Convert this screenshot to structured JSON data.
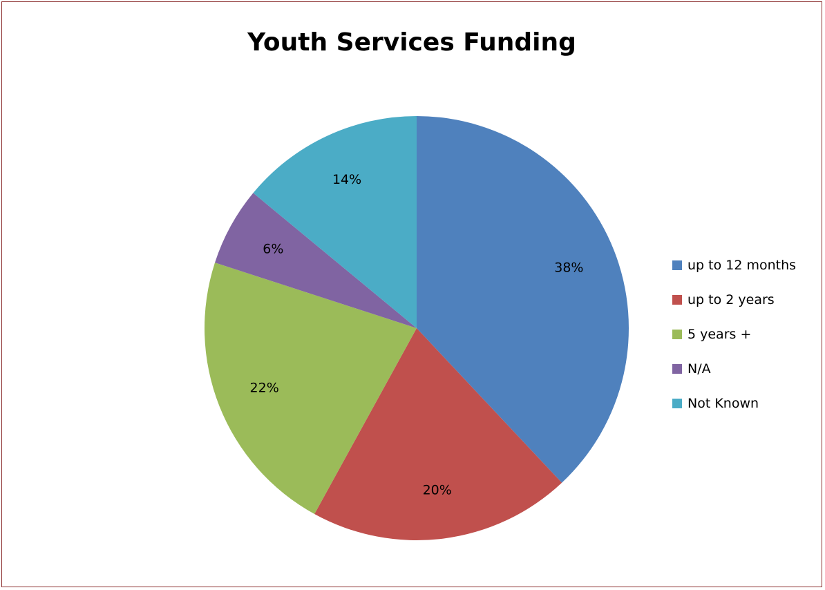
{
  "chart_data": {
    "type": "pie",
    "title": "Youth Services Funding",
    "categories": [
      "up to 12 months",
      "up to 2 years",
      "5 years +",
      "N/A",
      "Not Known"
    ],
    "values": [
      38,
      20,
      22,
      6,
      14
    ],
    "data_labels": [
      "38%",
      "20%",
      "22%",
      "6%",
      "14%"
    ],
    "colors": [
      "#4f81bd",
      "#c0504d",
      "#9bbb59",
      "#8064a2",
      "#4bacc6"
    ],
    "legend_placement": "right",
    "start_angle": "top, clockwise"
  }
}
